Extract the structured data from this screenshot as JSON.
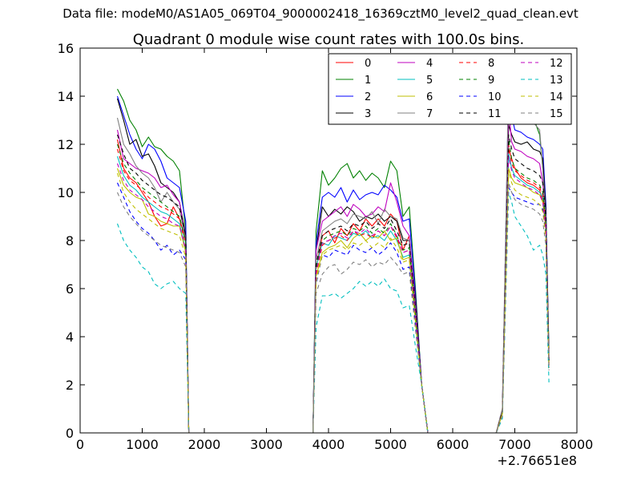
{
  "figure": {
    "suptitle": "Data file: modeM0/AS1A05_069T04_9000002418_16369cztM0_level2_quad_clean.evt"
  },
  "chart_data": {
    "type": "line",
    "title": "Quadrant 0 module wise count rates with 100.0s bins.",
    "xlabel": "",
    "ylabel": "",
    "xlim": [
      0,
      8000
    ],
    "ylim": [
      0,
      16
    ],
    "x_offset_label": "+2.76651e8",
    "xticks": [
      0,
      1000,
      2000,
      3000,
      4000,
      5000,
      6000,
      7000,
      8000
    ],
    "yticks": [
      0,
      2,
      4,
      6,
      8,
      10,
      12,
      14,
      16
    ],
    "legend_placement": "top-right",
    "grid": false,
    "segments": [
      {
        "x": [
          600,
          700,
          800,
          900,
          1000,
          1100,
          1200,
          1300,
          1400,
          1500,
          1600,
          1700,
          1750
        ]
      },
      {
        "x": [
          3750,
          3800,
          3900,
          4000,
          4100,
          4200,
          4300,
          4400,
          4500,
          4600,
          4700,
          4800,
          4900,
          5000,
          5100,
          5200,
          5300,
          5400,
          5500,
          5600
        ]
      },
      {
        "x": [
          6700,
          6800,
          6900,
          6950,
          7000,
          7100,
          7200,
          7300,
          7400,
          7450,
          7500,
          7550
        ]
      }
    ],
    "series": [
      {
        "name": "0",
        "color": "#ff0000",
        "dash": "solid",
        "values": [
          [
            12.2,
            11.0,
            10.6,
            10.4,
            10.0,
            9.6,
            9.0,
            8.6,
            8.7,
            9.4,
            8.9,
            8.0,
            0
          ],
          [
            0,
            6.8,
            8.2,
            8.4,
            7.9,
            8.5,
            8.2,
            8.7,
            8.4,
            8.9,
            8.6,
            8.9,
            8.6,
            9.1,
            8.8,
            7.6,
            8.2,
            5.0,
            2.0,
            0
          ],
          [
            0,
            0.8,
            11.8,
            11.4,
            11.0,
            10.6,
            10.4,
            10.3,
            10.1,
            9.6,
            8.8,
            3.0
          ]
        ]
      },
      {
        "name": "1",
        "color": "#008000",
        "dash": "solid",
        "values": [
          [
            14.3,
            13.8,
            13.0,
            12.6,
            11.9,
            12.3,
            11.9,
            11.8,
            11.5,
            11.3,
            10.9,
            8.4,
            0
          ],
          [
            0,
            8.4,
            10.9,
            10.3,
            10.6,
            11.0,
            11.2,
            10.6,
            10.9,
            10.5,
            10.8,
            10.6,
            10.2,
            11.3,
            10.9,
            9.0,
            9.4,
            6.0,
            2.0,
            0
          ],
          [
            0,
            1.0,
            14.0,
            13.8,
            13.5,
            13.4,
            13.2,
            13.1,
            12.4,
            11.0,
            9.0,
            3.5
          ]
        ]
      },
      {
        "name": "2",
        "color": "#0000ff",
        "dash": "solid",
        "values": [
          [
            14.0,
            13.2,
            12.4,
            11.8,
            11.4,
            12.0,
            11.8,
            11.3,
            10.6,
            10.4,
            10.2,
            8.8,
            0
          ],
          [
            0,
            7.9,
            9.8,
            10.0,
            9.8,
            10.2,
            9.6,
            10.1,
            9.7,
            9.9,
            10.0,
            9.9,
            10.3,
            10.1,
            9.8,
            8.8,
            8.9,
            5.8,
            2.0,
            0
          ],
          [
            0,
            0.9,
            14.5,
            13.2,
            12.6,
            12.5,
            12.3,
            12.2,
            12.0,
            11.8,
            9.5,
            3.2
          ]
        ]
      },
      {
        "name": "3",
        "color": "#000000",
        "dash": "solid",
        "values": [
          [
            13.9,
            13.0,
            12.0,
            12.2,
            11.5,
            11.6,
            11.1,
            10.4,
            10.2,
            10.0,
            9.6,
            8.2,
            0
          ],
          [
            0,
            7.6,
            9.4,
            9.0,
            9.3,
            9.1,
            9.4,
            9.2,
            8.8,
            9.0,
            8.9,
            9.1,
            8.8,
            9.0,
            8.8,
            8.0,
            8.0,
            5.6,
            2.0,
            0
          ],
          [
            0,
            0.9,
            12.8,
            12.4,
            12.1,
            12.0,
            12.1,
            11.8,
            11.7,
            11.4,
            9.2,
            3.0
          ]
        ]
      },
      {
        "name": "4",
        "color": "#bf00bf",
        "dash": "solid",
        "values": [
          [
            12.6,
            11.4,
            11.2,
            11.0,
            10.9,
            10.8,
            10.6,
            10.2,
            10.3,
            9.9,
            9.6,
            8.0,
            0
          ],
          [
            0,
            7.6,
            8.8,
            9.0,
            9.2,
            9.4,
            9.0,
            9.5,
            9.3,
            9.0,
            9.1,
            9.4,
            9.2,
            10.4,
            9.6,
            8.6,
            8.2,
            5.4,
            2.0,
            0
          ],
          [
            0,
            1.0,
            13.5,
            12.1,
            11.8,
            11.7,
            11.5,
            11.4,
            11.2,
            10.4,
            9.0,
            3.0
          ]
        ]
      },
      {
        "name": "5",
        "color": "#00bfbf",
        "dash": "solid",
        "values": [
          [
            11.5,
            10.7,
            10.3,
            10.1,
            9.8,
            9.6,
            9.4,
            9.2,
            9.1,
            8.9,
            8.7,
            7.6,
            0
          ],
          [
            0,
            6.9,
            7.9,
            7.8,
            8.2,
            8.1,
            8.0,
            8.3,
            8.2,
            8.4,
            8.1,
            8.2,
            8.0,
            8.4,
            8.0,
            7.3,
            7.4,
            4.8,
            2.0,
            0
          ],
          [
            0,
            0.8,
            11.6,
            11.0,
            10.7,
            10.5,
            10.3,
            10.2,
            10.0,
            9.8,
            8.6,
            2.8
          ]
        ]
      },
      {
        "name": "6",
        "color": "#bfbf00",
        "dash": "solid",
        "values": [
          [
            11.0,
            10.3,
            10.0,
            9.8,
            9.7,
            9.1,
            9.0,
            8.8,
            8.7,
            8.6,
            8.6,
            7.5,
            0
          ],
          [
            0,
            6.5,
            7.5,
            7.7,
            7.8,
            8.0,
            7.7,
            8.1,
            8.3,
            8.0,
            8.2,
            8.1,
            8.4,
            8.0,
            8.1,
            7.2,
            7.3,
            4.7,
            2.0,
            0
          ],
          [
            0,
            0.8,
            11.0,
            10.6,
            10.4,
            10.3,
            10.2,
            10.0,
            9.9,
            9.6,
            8.4,
            2.8
          ]
        ]
      },
      {
        "name": "7",
        "color": "#808080",
        "dash": "solid",
        "values": [
          [
            13.1,
            12.0,
            11.6,
            11.1,
            10.8,
            10.6,
            10.2,
            9.6,
            10.0,
            9.6,
            9.3,
            8.0,
            0
          ],
          [
            0,
            7.2,
            8.4,
            8.6,
            8.8,
            8.9,
            8.7,
            9.1,
            9.0,
            8.9,
            9.2,
            8.7,
            9.3,
            9.0,
            8.9,
            8.1,
            8.0,
            5.2,
            2.0,
            0
          ],
          [
            0,
            1.0,
            14.8,
            14.0,
            13.6,
            13.3,
            13.2,
            12.9,
            12.6,
            11.0,
            8.8,
            3.1
          ]
        ]
      },
      {
        "name": "8",
        "color": "#ff0000",
        "dash": "dashed",
        "values": [
          [
            11.8,
            10.9,
            10.5,
            10.3,
            10.1,
            9.8,
            9.6,
            9.4,
            9.3,
            9.1,
            8.9,
            7.8,
            0
          ],
          [
            0,
            6.6,
            7.8,
            8.0,
            8.1,
            8.2,
            8.0,
            8.4,
            8.2,
            8.3,
            8.1,
            8.4,
            8.2,
            8.6,
            8.1,
            7.5,
            7.6,
            4.9,
            2.0,
            0
          ],
          [
            0,
            0.8,
            12.0,
            11.2,
            10.9,
            10.7,
            10.5,
            10.4,
            10.2,
            9.9,
            8.6,
            2.9
          ]
        ]
      },
      {
        "name": "9",
        "color": "#008000",
        "dash": "dashed",
        "values": [
          [
            12.0,
            11.2,
            10.8,
            10.5,
            10.2,
            10.0,
            9.8,
            9.6,
            9.4,
            9.2,
            9.0,
            7.9,
            0
          ],
          [
            0,
            6.8,
            8.0,
            8.2,
            8.3,
            8.4,
            8.2,
            8.5,
            8.4,
            8.6,
            8.3,
            8.5,
            8.3,
            8.7,
            8.2,
            7.6,
            7.7,
            5.0,
            2.0,
            0
          ],
          [
            0,
            0.8,
            12.2,
            11.4,
            11.0,
            10.8,
            10.6,
            10.5,
            10.3,
            10.0,
            8.7,
            3.0
          ]
        ]
      },
      {
        "name": "10",
        "color": "#0000ff",
        "dash": "dashed",
        "values": [
          [
            10.4,
            9.8,
            9.2,
            8.8,
            8.5,
            8.3,
            8.0,
            7.6,
            7.8,
            7.4,
            7.6,
            7.2,
            0
          ],
          [
            0,
            6.2,
            7.4,
            7.3,
            7.6,
            7.5,
            7.4,
            7.8,
            7.6,
            7.5,
            7.7,
            7.4,
            7.6,
            7.9,
            7.5,
            6.8,
            6.9,
            4.5,
            2.0,
            0
          ],
          [
            0,
            0.8,
            10.2,
            10.0,
            9.8,
            9.7,
            9.6,
            9.5,
            9.5,
            9.3,
            8.2,
            2.7
          ]
        ]
      },
      {
        "name": "11",
        "color": "#000000",
        "dash": "dashed",
        "values": [
          [
            12.4,
            11.6,
            11.0,
            10.8,
            10.5,
            10.3,
            10.1,
            9.9,
            9.8,
            9.6,
            9.4,
            8.2,
            0
          ],
          [
            0,
            7.0,
            8.2,
            8.4,
            8.5,
            8.6,
            8.4,
            8.7,
            8.6,
            8.8,
            8.5,
            8.7,
            8.5,
            8.9,
            8.4,
            7.8,
            7.9,
            5.2,
            2.0,
            0
          ],
          [
            0,
            0.9,
            12.4,
            11.8,
            11.4,
            11.2,
            11.0,
            10.9,
            10.7,
            10.4,
            9.0,
            3.0
          ]
        ]
      },
      {
        "name": "12",
        "color": "#bf00bf",
        "dash": "dashed",
        "values": [
          [
            11.2,
            10.5,
            10.1,
            9.9,
            9.7,
            9.4,
            9.2,
            9.0,
            8.9,
            8.7,
            8.6,
            7.6,
            0
          ],
          [
            0,
            6.7,
            7.9,
            8.0,
            8.2,
            8.3,
            8.1,
            8.4,
            8.3,
            8.5,
            8.2,
            8.4,
            8.2,
            8.6,
            8.2,
            7.5,
            7.6,
            4.9,
            2.0,
            0
          ],
          [
            0,
            0.8,
            11.5,
            10.9,
            10.6,
            10.4,
            10.2,
            10.1,
            9.9,
            9.6,
            8.5,
            2.8
          ]
        ]
      },
      {
        "name": "13",
        "color": "#00bfbf",
        "dash": "dashed",
        "values": [
          [
            8.7,
            8.0,
            7.6,
            7.3,
            6.9,
            6.7,
            6.2,
            6.0,
            6.2,
            6.3,
            6.0,
            5.8,
            0
          ],
          [
            0,
            4.4,
            5.7,
            5.7,
            5.8,
            5.6,
            5.8,
            6.0,
            6.3,
            6.1,
            6.3,
            6.1,
            6.4,
            6.0,
            5.9,
            5.2,
            5.3,
            3.6,
            2.0,
            0
          ],
          [
            0,
            0.6,
            10.0,
            9.6,
            9.0,
            8.6,
            8.2,
            7.6,
            7.8,
            7.4,
            6.6,
            2.1
          ]
        ]
      },
      {
        "name": "14",
        "color": "#bfbf00",
        "dash": "dashed",
        "values": [
          [
            10.8,
            10.0,
            9.6,
            9.3,
            9.1,
            8.9,
            8.7,
            8.5,
            8.4,
            8.3,
            8.2,
            7.3,
            0
          ],
          [
            0,
            6.3,
            7.4,
            7.6,
            7.7,
            7.8,
            7.6,
            7.9,
            7.8,
            8.0,
            7.7,
            7.9,
            7.7,
            8.1,
            7.7,
            7.1,
            7.2,
            4.6,
            2.0,
            0
          ],
          [
            0,
            0.8,
            10.9,
            10.4,
            10.1,
            9.9,
            9.8,
            9.7,
            9.5,
            9.2,
            8.1,
            2.7
          ]
        ]
      },
      {
        "name": "15",
        "color": "#808080",
        "dash": "dashed",
        "values": [
          [
            10.0,
            9.4,
            9.0,
            8.7,
            8.4,
            8.2,
            8.0,
            7.8,
            7.7,
            7.6,
            7.5,
            6.9,
            0
          ],
          [
            0,
            5.8,
            6.6,
            6.9,
            7.0,
            6.6,
            6.8,
            7.1,
            7.0,
            7.2,
            6.9,
            7.1,
            7.0,
            7.3,
            7.0,
            6.6,
            6.7,
            4.3,
            2.0,
            0
          ],
          [
            0,
            0.7,
            10.4,
            10.0,
            9.7,
            9.5,
            9.4,
            9.3,
            9.1,
            8.8,
            7.8,
            2.6
          ]
        ]
      }
    ]
  }
}
